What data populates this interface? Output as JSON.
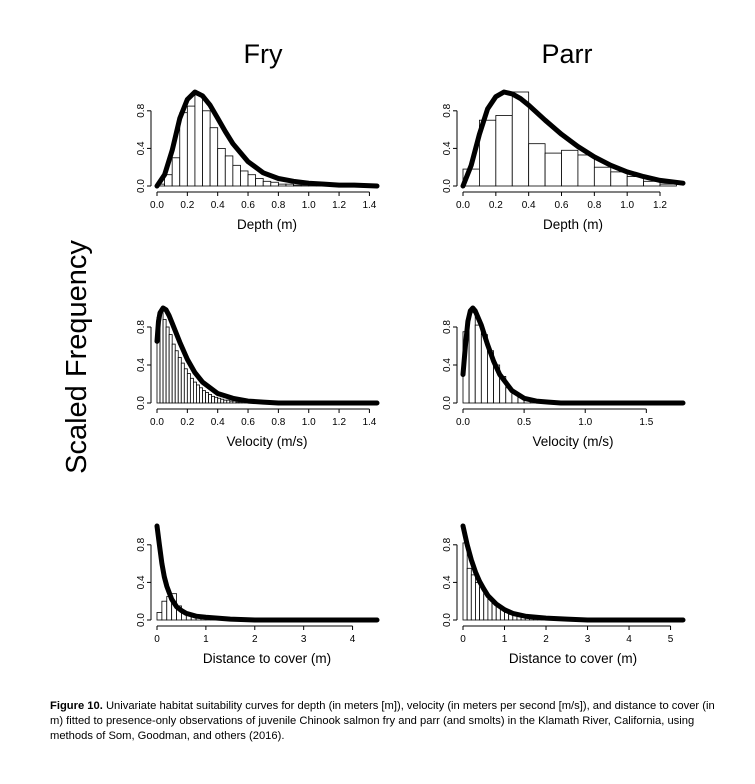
{
  "figure": {
    "column_titles": [
      "Fry",
      "Parr"
    ],
    "ylabel": "Scaled Frequency",
    "caption_label": "Figure 10.",
    "caption_text": "Univariate habitat suitability curves for depth (in meters [m]), velocity (in meters per second [m/s]), and distance to cover (in m) fitted to presence-only observations of juvenile Chinook salmon fry and parr (and smolts) in the Klamath River, California, using methods of Som, Goodman, and others (2016)."
  },
  "chart_data": [
    {
      "id": "fry-depth",
      "type": "bar",
      "xlabel": "Depth (m)",
      "xlim": [
        0,
        1.45
      ],
      "ylim": [
        0,
        1.0
      ],
      "xticks": [
        0.0,
        0.2,
        0.4,
        0.6,
        0.8,
        1.0,
        1.2,
        1.4
      ],
      "xtick_labels": [
        "0.0",
        "0.2",
        "0.4",
        "0.6",
        "0.8",
        "1.0",
        "1.2",
        "1.4"
      ],
      "yticks": [
        0.0,
        0.4,
        0.8
      ],
      "ytick_labels": [
        "0.0",
        "0.4",
        "0.8"
      ],
      "bin_width": 0.05,
      "bar_values": [
        0.02,
        0.12,
        0.3,
        0.78,
        0.85,
        0.97,
        0.8,
        0.62,
        0.4,
        0.32,
        0.22,
        0.16,
        0.12,
        0.08,
        0.05,
        0.04,
        0.02,
        0.02,
        0.01,
        0.01,
        0.01,
        0.01,
        0.01,
        0.0,
        0.0,
        0.0,
        0.0,
        0.0,
        0.0
      ],
      "curve": {
        "x": [
          0.0,
          0.05,
          0.1,
          0.15,
          0.2,
          0.25,
          0.3,
          0.35,
          0.4,
          0.45,
          0.5,
          0.6,
          0.7,
          0.8,
          0.9,
          1.0,
          1.1,
          1.2,
          1.3,
          1.45
        ],
        "y": [
          0.0,
          0.12,
          0.38,
          0.72,
          0.92,
          1.0,
          0.96,
          0.86,
          0.72,
          0.58,
          0.45,
          0.26,
          0.14,
          0.08,
          0.05,
          0.03,
          0.02,
          0.01,
          0.01,
          0.0
        ]
      }
    },
    {
      "id": "parr-depth",
      "type": "bar",
      "xlabel": "Depth (m)",
      "xlim": [
        0,
        1.34
      ],
      "ylim": [
        0,
        1.0
      ],
      "xticks": [
        0.0,
        0.2,
        0.4,
        0.6,
        0.8,
        1.0,
        1.2
      ],
      "xtick_labels": [
        "0.0",
        "0.2",
        "0.4",
        "0.6",
        "0.8",
        "1.0",
        "1.2"
      ],
      "yticks": [
        0.0,
        0.4,
        0.8
      ],
      "ytick_labels": [
        "0.0",
        "0.4",
        "0.8"
      ],
      "bin_width": 0.1,
      "bar_values": [
        0.18,
        0.7,
        0.75,
        1.0,
        0.45,
        0.35,
        0.38,
        0.33,
        0.2,
        0.15,
        0.1,
        0.05,
        0.02
      ],
      "curve": {
        "x": [
          0.0,
          0.05,
          0.1,
          0.15,
          0.2,
          0.25,
          0.3,
          0.35,
          0.4,
          0.5,
          0.6,
          0.7,
          0.8,
          0.9,
          1.0,
          1.1,
          1.2,
          1.34
        ],
        "y": [
          0.0,
          0.22,
          0.55,
          0.82,
          0.95,
          1.0,
          0.98,
          0.93,
          0.86,
          0.7,
          0.55,
          0.42,
          0.31,
          0.22,
          0.15,
          0.1,
          0.06,
          0.03
        ]
      }
    },
    {
      "id": "fry-velocity",
      "type": "bar",
      "xlabel": "Velocity (m/s)",
      "xlim": [
        0,
        1.45
      ],
      "ylim": [
        0,
        1.0
      ],
      "xticks": [
        0.0,
        0.2,
        0.4,
        0.6,
        0.8,
        1.0,
        1.2,
        1.4
      ],
      "xtick_labels": [
        "0.0",
        "0.2",
        "0.4",
        "0.6",
        "0.8",
        "1.0",
        "1.2",
        "1.4"
      ],
      "yticks": [
        0.0,
        0.4,
        0.8
      ],
      "ytick_labels": [
        "0.0",
        "0.4",
        "0.8"
      ],
      "bin_width": 0.02,
      "bar_values": [
        0.9,
        0.95,
        0.88,
        0.8,
        0.72,
        0.62,
        0.55,
        0.48,
        0.42,
        0.36,
        0.31,
        0.26,
        0.22,
        0.19,
        0.16,
        0.13,
        0.11,
        0.09,
        0.07,
        0.06,
        0.05,
        0.04,
        0.03,
        0.03,
        0.02,
        0.02,
        0.01,
        0.01,
        0.01,
        0.01,
        0.01,
        0.01,
        0.0,
        0.0,
        0.0,
        0.0,
        0.0,
        0.0,
        0.0,
        0.0
      ],
      "curve": {
        "x": [
          0.0,
          0.01,
          0.02,
          0.04,
          0.06,
          0.08,
          0.1,
          0.15,
          0.2,
          0.25,
          0.3,
          0.4,
          0.5,
          0.6,
          0.7,
          0.8,
          1.0,
          1.2,
          1.45
        ],
        "y": [
          0.65,
          0.86,
          0.95,
          1.0,
          0.98,
          0.92,
          0.84,
          0.64,
          0.46,
          0.32,
          0.22,
          0.1,
          0.05,
          0.02,
          0.01,
          0.0,
          0.0,
          0.0,
          0.0
        ]
      }
    },
    {
      "id": "parr-velocity",
      "type": "bar",
      "xlabel": "Velocity (m/s)",
      "xlim": [
        0,
        1.8
      ],
      "ylim": [
        0,
        1.0
      ],
      "xticks": [
        0.0,
        0.5,
        1.0,
        1.5
      ],
      "xtick_labels": [
        "0.0",
        "0.5",
        "1.0",
        "1.5"
      ],
      "yticks": [
        0.0,
        0.4,
        0.8
      ],
      "ytick_labels": [
        "0.0",
        "0.4",
        "0.8"
      ],
      "bin_width": 0.05,
      "bar_values": [
        0.75,
        0.95,
        0.82,
        0.72,
        0.55,
        0.4,
        0.28,
        0.16,
        0.1,
        0.06,
        0.03,
        0.02,
        0.01,
        0.01,
        0.0,
        0.0
      ],
      "curve": {
        "x": [
          0.0,
          0.02,
          0.04,
          0.06,
          0.08,
          0.1,
          0.15,
          0.2,
          0.25,
          0.3,
          0.4,
          0.5,
          0.6,
          0.7,
          0.8,
          1.0,
          1.2,
          1.5,
          1.8
        ],
        "y": [
          0.3,
          0.6,
          0.86,
          0.97,
          1.0,
          0.97,
          0.82,
          0.62,
          0.44,
          0.3,
          0.13,
          0.05,
          0.02,
          0.01,
          0.0,
          0.0,
          0.0,
          0.0,
          0.0
        ]
      }
    },
    {
      "id": "fry-cover",
      "type": "bar",
      "xlabel": "Distance to cover (m)",
      "xlim": [
        0,
        4.5
      ],
      "ylim": [
        0,
        1.0
      ],
      "xticks": [
        0,
        1,
        2,
        3,
        4
      ],
      "xtick_labels": [
        "0",
        "1",
        "2",
        "3",
        "4"
      ],
      "yticks": [
        0.0,
        0.4,
        0.8
      ],
      "ytick_labels": [
        "0.0",
        "0.4",
        "0.8"
      ],
      "bin_width": 0.1,
      "bar_values": [
        0.08,
        0.2,
        0.25,
        0.28,
        0.15,
        0.08,
        0.05,
        0.04,
        0.03,
        0.02,
        0.02,
        0.01,
        0.01,
        0.01,
        0.01,
        0.0,
        0.0,
        0.0,
        0.0,
        0.0
      ],
      "curve": {
        "x": [
          0.0,
          0.05,
          0.1,
          0.15,
          0.2,
          0.3,
          0.4,
          0.5,
          0.6,
          0.8,
          1.0,
          1.5,
          2.0,
          3.0,
          4.5
        ],
        "y": [
          1.0,
          0.8,
          0.6,
          0.46,
          0.36,
          0.22,
          0.14,
          0.1,
          0.07,
          0.04,
          0.03,
          0.01,
          0.0,
          0.0,
          0.0
        ]
      }
    },
    {
      "id": "parr-cover",
      "type": "bar",
      "xlabel": "Distance to cover (m)",
      "xlim": [
        0,
        5.3
      ],
      "ylim": [
        0,
        1.0
      ],
      "xticks": [
        0,
        1,
        2,
        3,
        4,
        5
      ],
      "xtick_labels": [
        "0",
        "1",
        "2",
        "3",
        "4",
        "5"
      ],
      "yticks": [
        0.0,
        0.4,
        0.8
      ],
      "ytick_labels": [
        "0.0",
        "0.4",
        "0.8"
      ],
      "bin_width": 0.1,
      "bar_values": [
        0.82,
        0.55,
        0.48,
        0.4,
        0.35,
        0.28,
        0.22,
        0.18,
        0.15,
        0.12,
        0.08,
        0.06,
        0.05,
        0.04,
        0.03,
        0.02,
        0.02,
        0.01,
        0.01,
        0.01,
        0.01,
        0.0,
        0.0
      ],
      "curve": {
        "x": [
          0.0,
          0.1,
          0.2,
          0.3,
          0.4,
          0.5,
          0.6,
          0.8,
          1.0,
          1.2,
          1.5,
          2.0,
          2.5,
          3.0,
          4.0,
          5.3
        ],
        "y": [
          1.0,
          0.8,
          0.64,
          0.51,
          0.41,
          0.33,
          0.26,
          0.17,
          0.11,
          0.07,
          0.04,
          0.02,
          0.01,
          0.0,
          0.0,
          0.0
        ]
      }
    }
  ]
}
